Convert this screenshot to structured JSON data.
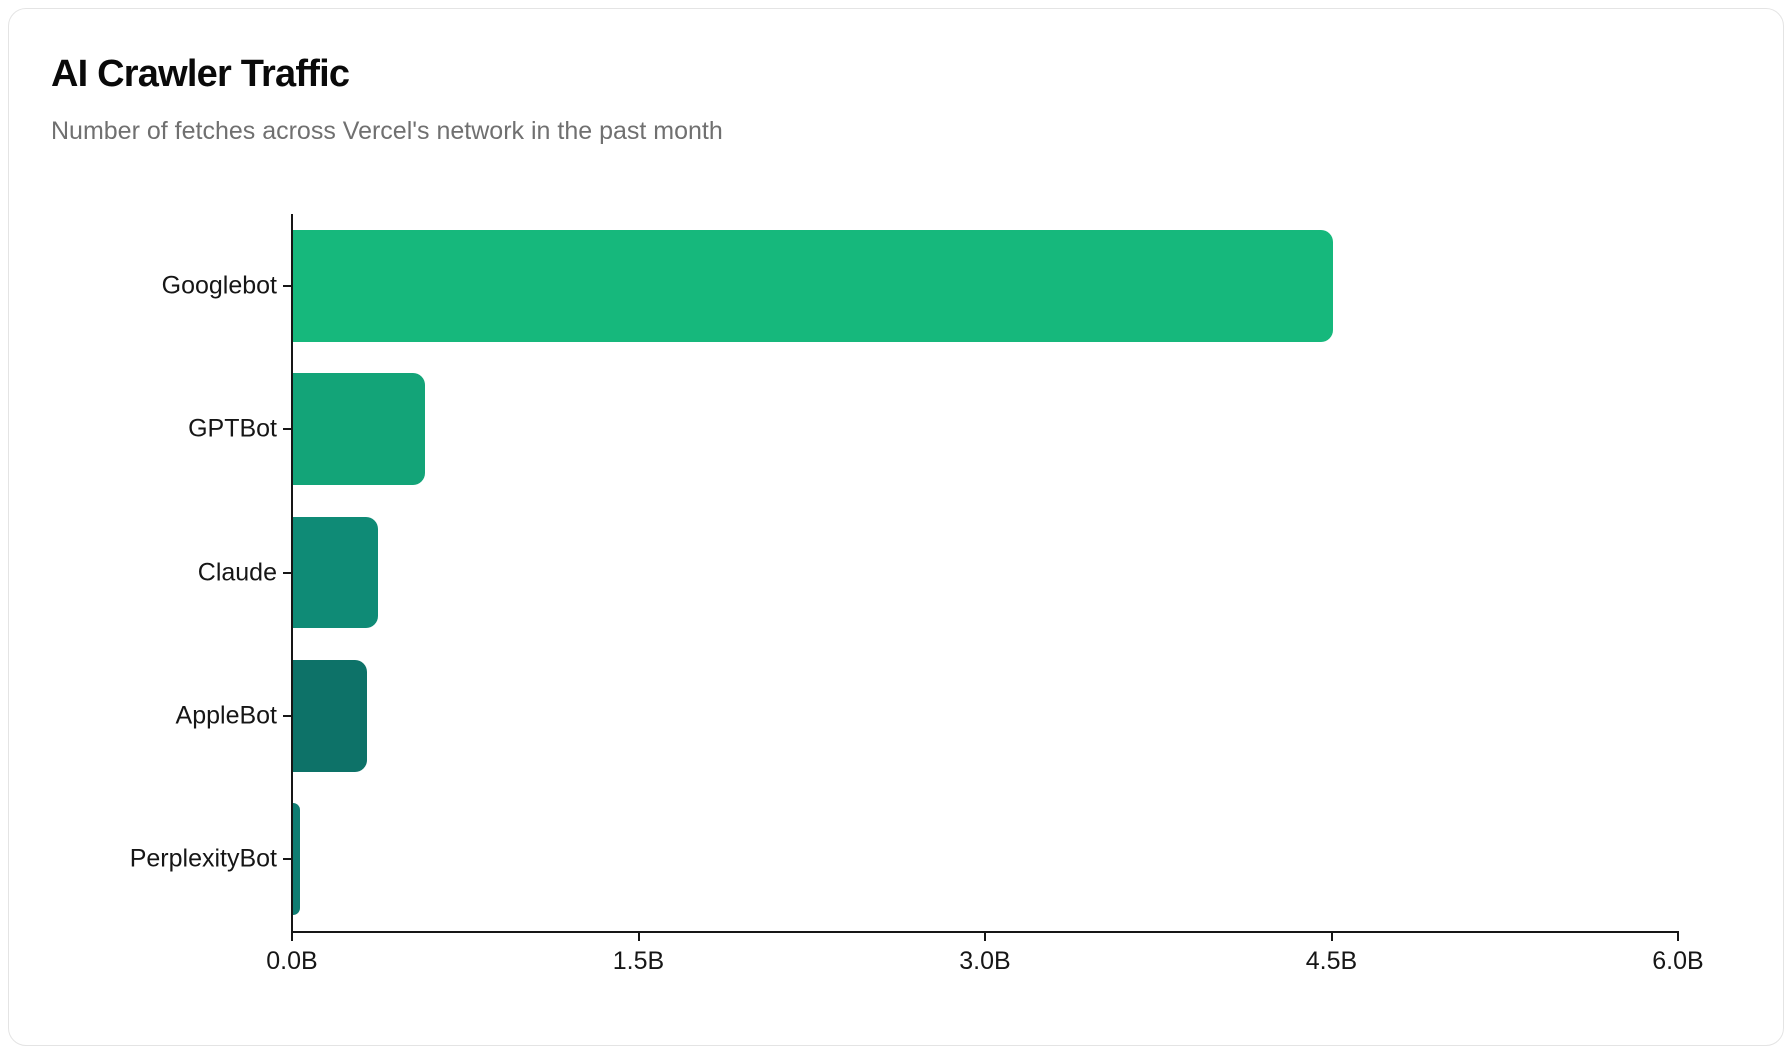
{
  "card": {
    "title": "AI Crawler Traffic",
    "subtitle": "Number of fetches across Vercel's network in the past month"
  },
  "chart_data": {
    "type": "bar",
    "orientation": "horizontal",
    "title": "AI Crawler Traffic",
    "subtitle": "Number of fetches across Vercel's network in the past month",
    "xlabel": "",
    "ylabel": "",
    "unit": "B (billions of fetches)",
    "grid": false,
    "legend": null,
    "categories": [
      "Googlebot",
      "GPTBot",
      "Claude",
      "AppleBot",
      "PerplexityBot"
    ],
    "values": [
      4.5,
      0.57,
      0.37,
      0.32,
      0.03
    ],
    "xlim": [
      0,
      6.0
    ],
    "x_ticks": [
      "0.0B",
      "1.5B",
      "3.0B",
      "4.5B",
      "6.0B"
    ],
    "x_tick_values": [
      0,
      1.5,
      3.0,
      4.5,
      6.0
    ],
    "bar_colors": [
      "#16b87c",
      "#13a478",
      "#0f8b76",
      "#0d7268",
      "#0f7d72"
    ],
    "patterned": [
      false,
      false,
      false,
      true,
      true
    ],
    "axis_color": "#161616"
  }
}
